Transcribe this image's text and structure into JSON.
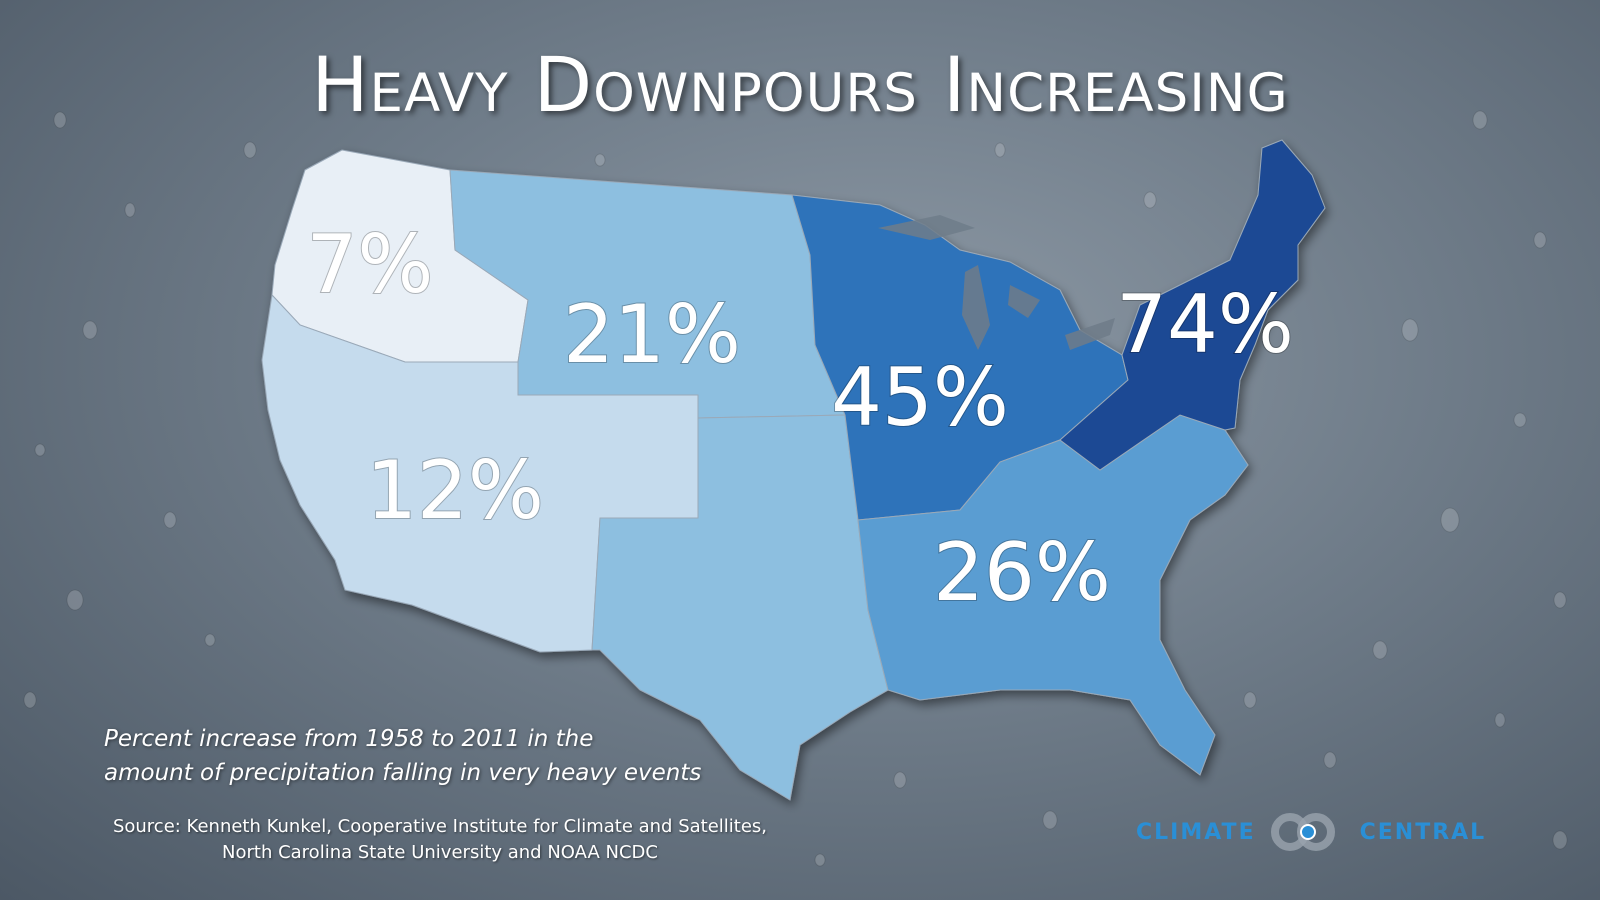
{
  "title": "Heavy Downpours Increasing",
  "map": {
    "regions": [
      {
        "id": "northwest",
        "value": "7%",
        "color": "#e8eff6"
      },
      {
        "id": "great-plains-north",
        "value": "21%",
        "color": "#8dbfe0"
      },
      {
        "id": "southwest",
        "value": "12%",
        "color": "#c5dbed"
      },
      {
        "id": "midwest",
        "value": "45%",
        "color": "#2f73ba"
      },
      {
        "id": "southeast",
        "value": "26%",
        "color": "#5a9dd2"
      },
      {
        "id": "northeast",
        "value": "74%",
        "color": "#1c4a94"
      },
      {
        "id": "great-plains-south",
        "value": "",
        "color": "#8dbfe0"
      }
    ]
  },
  "caption": {
    "line1": "Percent increase from 1958 to 2011 in the",
    "line2": "amount of precipitation falling in very heavy events"
  },
  "source": {
    "line1": "Source: Kenneth Kunkel, Cooperative Institute for Climate and Satellites,",
    "line2": "North Carolina State University and NOAA NCDC"
  },
  "logo": {
    "word_left": "CLIMATE",
    "word_right": "CENTRAL",
    "color": "#2a8fd6"
  }
}
